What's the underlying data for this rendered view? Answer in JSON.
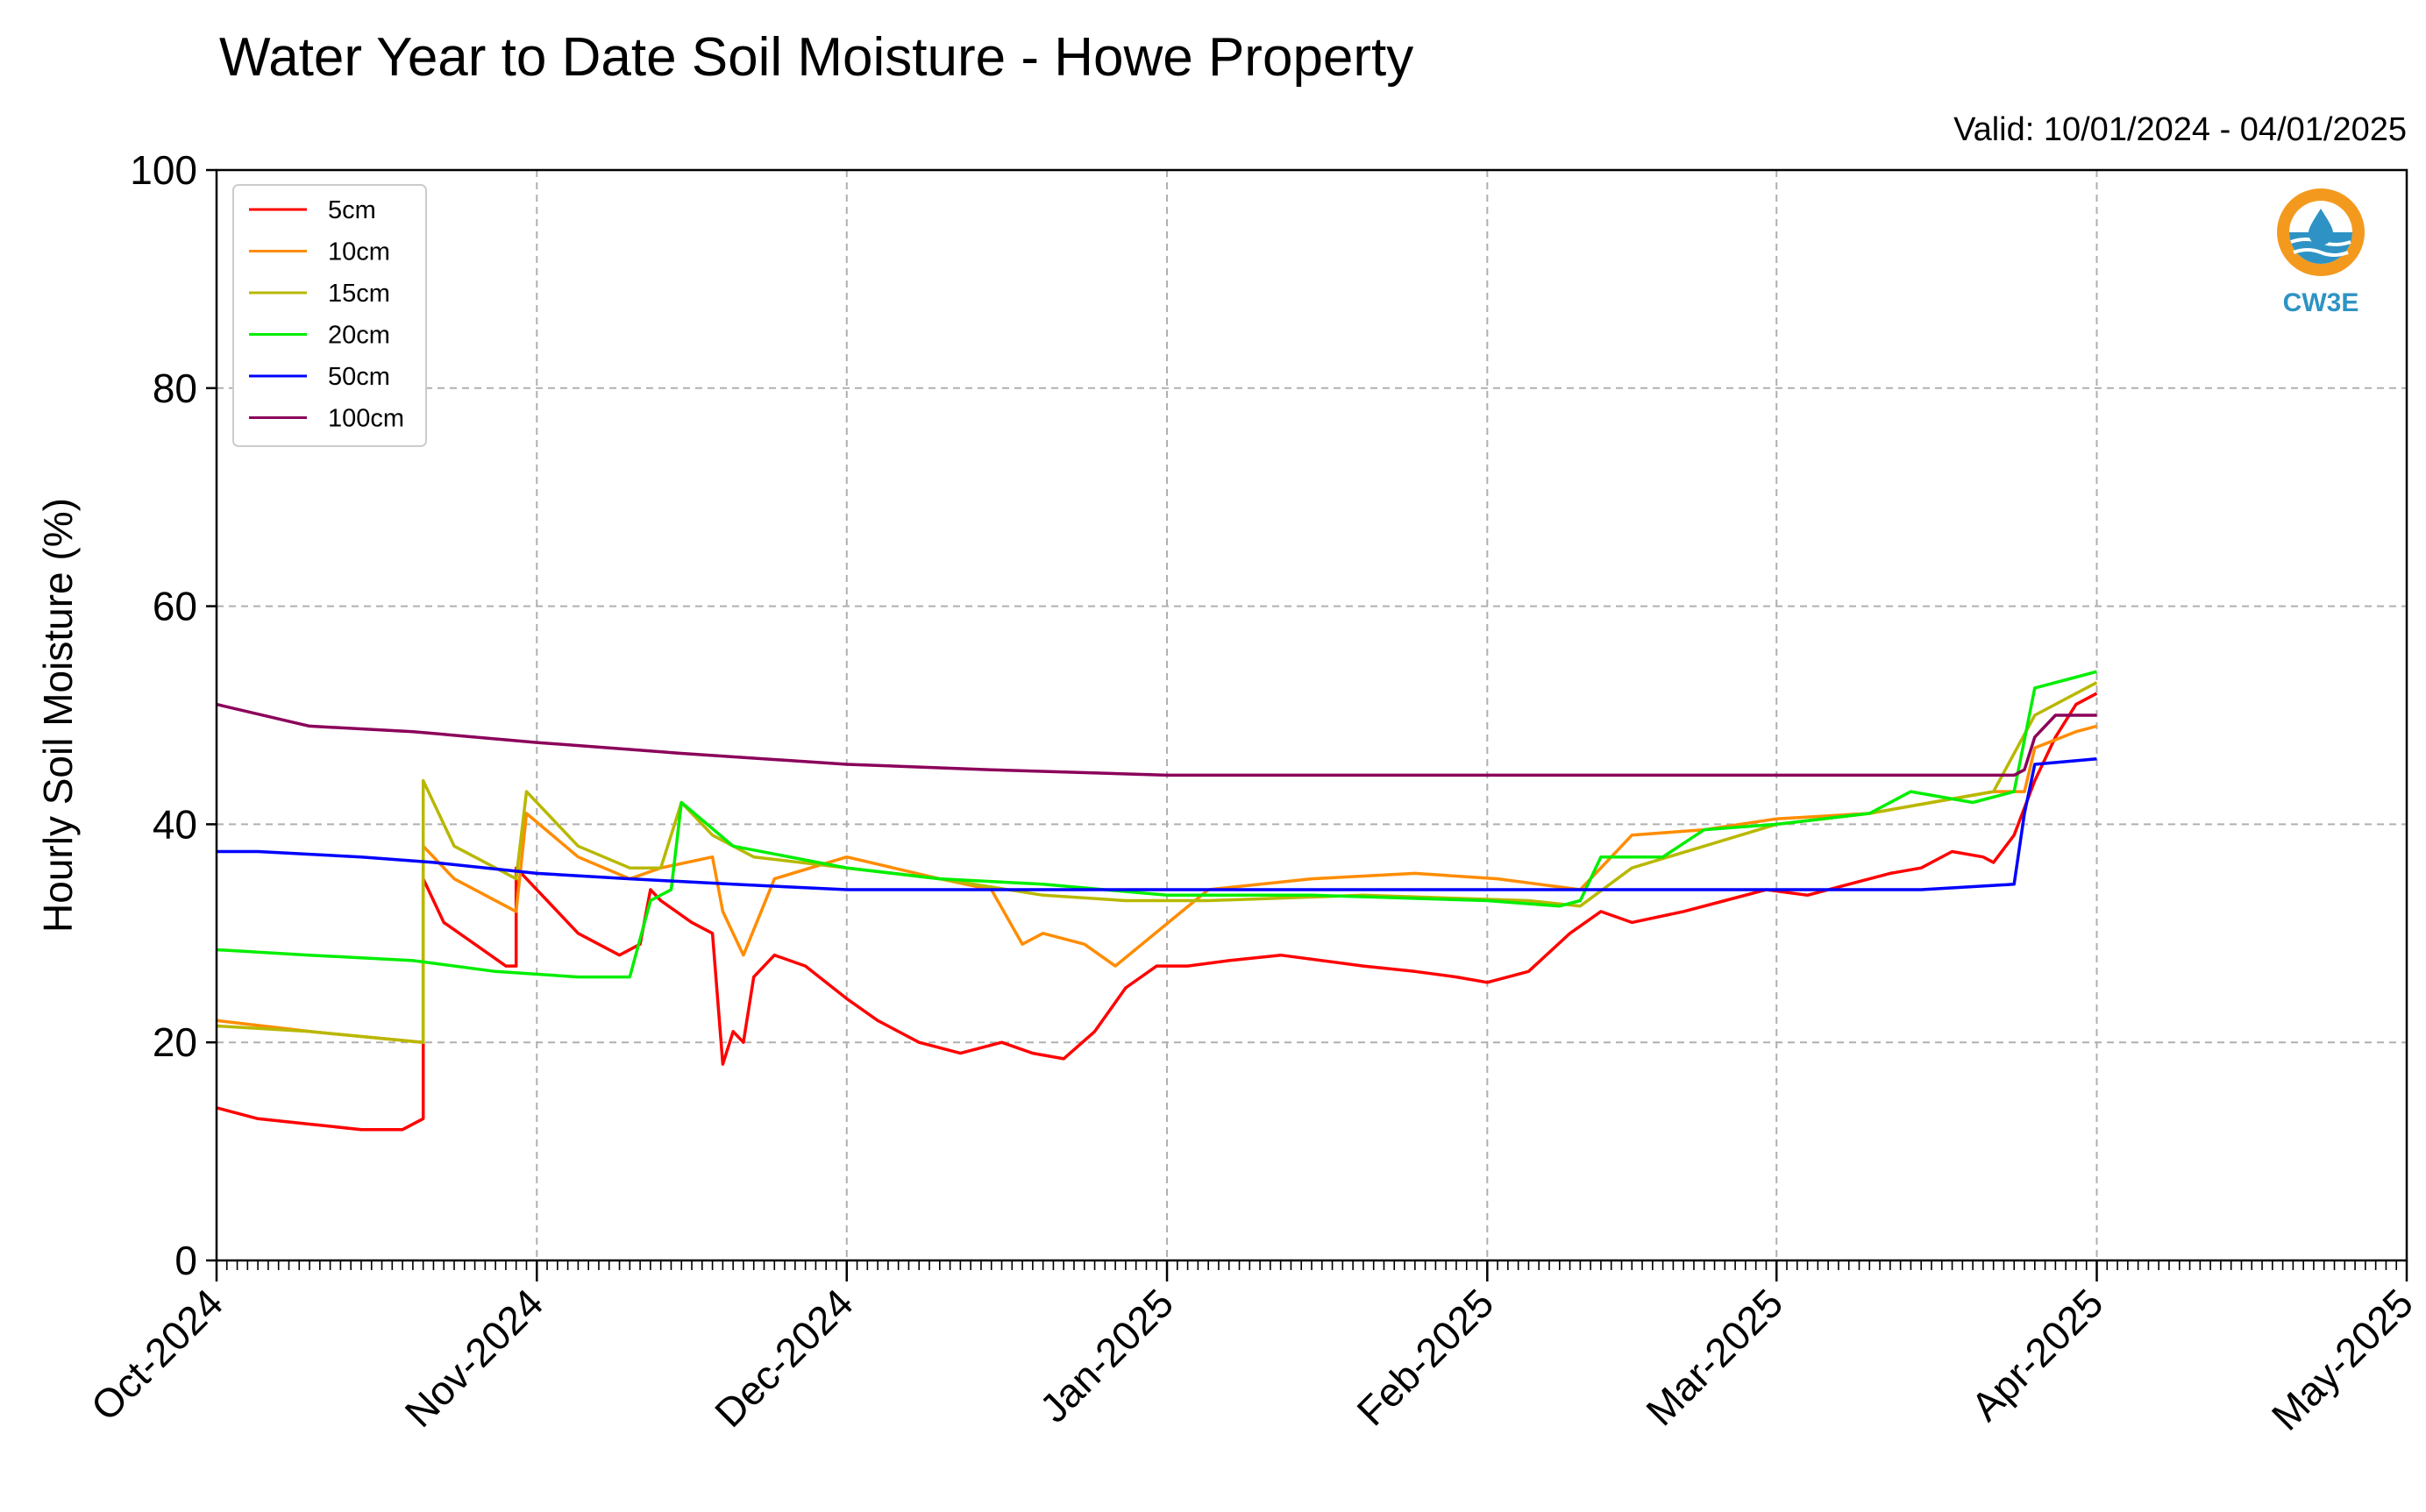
{
  "chart_data": {
    "type": "line",
    "title": "Water Year to Date Soil Moisture - Howe Property",
    "subtitle": "Valid: 10/01/2024 - 04/01/2025",
    "xlabel": "",
    "ylabel": "Hourly Soil Moisture (%)",
    "ylim": [
      0,
      100
    ],
    "xlim": [
      "2024-10-01",
      "2025-05-01"
    ],
    "y_ticks": [
      "0",
      "20",
      "40",
      "60",
      "80",
      "100"
    ],
    "x_ticks": [
      "Oct-2024",
      "Nov-2024",
      "Dec-2024",
      "Jan-2025",
      "Feb-2025",
      "Mar-2025",
      "Apr-2025",
      "May-2025"
    ],
    "grid": true,
    "legend_position": "top-left",
    "series": [
      {
        "name": "5cm",
        "color": "#ff0000",
        "x": [
          "2024-10-01",
          "2024-10-05",
          "2024-10-10",
          "2024-10-15",
          "2024-10-19",
          "2024-10-21",
          "2024-10-21",
          "2024-10-23",
          "2024-10-26",
          "2024-10-29",
          "2024-10-30",
          "2024-10-30",
          "2024-11-02",
          "2024-11-05",
          "2024-11-09",
          "2024-11-11",
          "2024-11-12",
          "2024-11-13",
          "2024-11-16",
          "2024-11-18",
          "2024-11-19",
          "2024-11-20",
          "2024-11-21",
          "2024-11-22",
          "2024-11-24",
          "2024-11-27",
          "2024-12-01",
          "2024-12-04",
          "2024-12-08",
          "2024-12-12",
          "2024-12-16",
          "2024-12-19",
          "2024-12-22",
          "2024-12-25",
          "2024-12-28",
          "2024-12-31",
          "2025-01-03",
          "2025-01-07",
          "2025-01-12",
          "2025-01-20",
          "2025-01-25",
          "2025-01-29",
          "2025-02-01",
          "2025-02-05",
          "2025-02-09",
          "2025-02-12",
          "2025-02-15",
          "2025-02-20",
          "2025-02-24",
          "2025-02-28",
          "2025-03-04",
          "2025-03-08",
          "2025-03-12",
          "2025-03-15",
          "2025-03-18",
          "2025-03-21",
          "2025-03-22",
          "2025-03-24",
          "2025-03-26",
          "2025-03-28",
          "2025-03-30",
          "2025-04-01"
        ],
        "values": [
          14,
          13,
          12.5,
          12,
          12,
          13,
          35,
          31,
          29,
          27,
          27,
          36,
          33,
          30,
          28,
          29,
          34,
          33,
          31,
          30,
          18,
          21,
          20,
          26,
          28,
          27,
          24,
          22,
          20,
          19,
          20,
          19,
          18.5,
          21,
          25,
          27,
          27,
          27.5,
          28,
          27,
          26.5,
          26,
          25.5,
          26.5,
          30,
          32,
          31,
          32,
          33,
          34,
          33.5,
          34.5,
          35.5,
          36,
          37.5,
          37,
          36.5,
          39,
          44,
          48,
          51,
          52
        ]
      },
      {
        "name": "10cm",
        "color": "#ff8c00",
        "x": [
          "2024-10-01",
          "2024-10-10",
          "2024-10-21",
          "2024-10-21",
          "2024-10-24",
          "2024-10-30",
          "2024-10-31",
          "2024-11-05",
          "2024-11-10",
          "2024-11-13",
          "2024-11-18",
          "2024-11-19",
          "2024-11-21",
          "2024-11-24",
          "2024-12-01",
          "2024-12-10",
          "2024-12-15",
          "2024-12-18",
          "2024-12-20",
          "2024-12-24",
          "2024-12-27",
          "2025-01-05",
          "2025-01-15",
          "2025-01-25",
          "2025-02-02",
          "2025-02-06",
          "2025-02-10",
          "2025-02-15",
          "2025-02-22",
          "2025-03-01",
          "2025-03-10",
          "2025-03-16",
          "2025-03-22",
          "2025-03-25",
          "2025-03-26",
          "2025-03-30",
          "2025-04-01"
        ],
        "values": [
          22,
          21,
          20,
          38,
          35,
          32,
          41,
          37,
          35,
          36,
          37,
          32,
          28,
          35,
          37,
          35,
          34,
          29,
          30,
          29,
          27,
          34,
          35,
          35.5,
          35,
          34.5,
          34,
          39,
          39.5,
          40.5,
          41,
          42,
          43,
          43,
          47,
          48.5,
          49
        ]
      },
      {
        "name": "15cm",
        "color": "#b8b800",
        "x": [
          "2024-10-01",
          "2024-10-10",
          "2024-10-21",
          "2024-10-21",
          "2024-10-24",
          "2024-10-30",
          "2024-10-31",
          "2024-11-05",
          "2024-11-10",
          "2024-11-13",
          "2024-11-15",
          "2024-11-18",
          "2024-11-22",
          "2024-12-01",
          "2024-12-10",
          "2024-12-20",
          "2024-12-28",
          "2025-01-05",
          "2025-01-20",
          "2025-02-05",
          "2025-02-10",
          "2025-02-15",
          "2025-02-22",
          "2025-03-01",
          "2025-03-10",
          "2025-03-16",
          "2025-03-22",
          "2025-03-26",
          "2025-03-30",
          "2025-04-01"
        ],
        "values": [
          21.5,
          21,
          20,
          44,
          38,
          35,
          43,
          38,
          36,
          36,
          42,
          39,
          37,
          36,
          35,
          33.5,
          33,
          33,
          33.5,
          33,
          32.5,
          36,
          38,
          40,
          41,
          42,
          43,
          50,
          52,
          53
        ]
      },
      {
        "name": "20cm",
        "color": "#00ee00",
        "x": [
          "2024-10-01",
          "2024-10-10",
          "2024-10-20",
          "2024-10-28",
          "2024-11-05",
          "2024-11-10",
          "2024-11-12",
          "2024-11-14",
          "2024-11-15",
          "2024-11-20",
          "2024-12-01",
          "2024-12-10",
          "2024-12-20",
          "2025-01-01",
          "2025-01-15",
          "2025-02-01",
          "2025-02-08",
          "2025-02-10",
          "2025-02-12",
          "2025-02-18",
          "2025-02-22",
          "2025-03-01",
          "2025-03-10",
          "2025-03-14",
          "2025-03-20",
          "2025-03-24",
          "2025-03-26",
          "2025-03-30",
          "2025-04-01"
        ],
        "values": [
          28.5,
          28,
          27.5,
          26.5,
          26,
          26,
          33,
          34,
          42,
          38,
          36,
          35,
          34.5,
          33.5,
          33.5,
          33,
          32.5,
          33,
          37,
          37,
          39.5,
          40,
          41,
          43,
          42,
          43,
          52.5,
          53.5,
          54
        ]
      },
      {
        "name": "50cm",
        "color": "#0000ff",
        "x": [
          "2024-10-01",
          "2024-10-05",
          "2024-10-15",
          "2024-10-22",
          "2024-11-01",
          "2024-11-10",
          "2024-11-20",
          "2024-12-01",
          "2024-12-15",
          "2025-01-01",
          "2025-01-15",
          "2025-02-01",
          "2025-02-15",
          "2025-03-01",
          "2025-03-15",
          "2025-03-24",
          "2025-03-25",
          "2025-03-26",
          "2025-04-01"
        ],
        "values": [
          37.5,
          37.5,
          37,
          36.5,
          35.5,
          35,
          34.5,
          34,
          34,
          34,
          34,
          34,
          34,
          34,
          34,
          34.5,
          41,
          45.5,
          46
        ]
      },
      {
        "name": "100cm",
        "color": "#8b005a",
        "x": [
          "2024-10-01",
          "2024-10-10",
          "2024-10-20",
          "2024-11-01",
          "2024-11-15",
          "2024-12-01",
          "2024-12-15",
          "2025-01-01",
          "2025-01-15",
          "2025-02-01",
          "2025-02-15",
          "2025-03-01",
          "2025-03-15",
          "2025-03-24",
          "2025-03-25",
          "2025-03-26",
          "2025-03-28",
          "2025-04-01"
        ],
        "values": [
          51,
          49,
          48.5,
          47.5,
          46.5,
          45.5,
          45,
          44.5,
          44.5,
          44.5,
          44.5,
          44.5,
          44.5,
          44.5,
          45,
          48,
          50,
          50
        ]
      }
    ]
  },
  "logo": {
    "text": "CW3E",
    "color": "#2e93c4",
    "accent": "#f39a1e"
  }
}
